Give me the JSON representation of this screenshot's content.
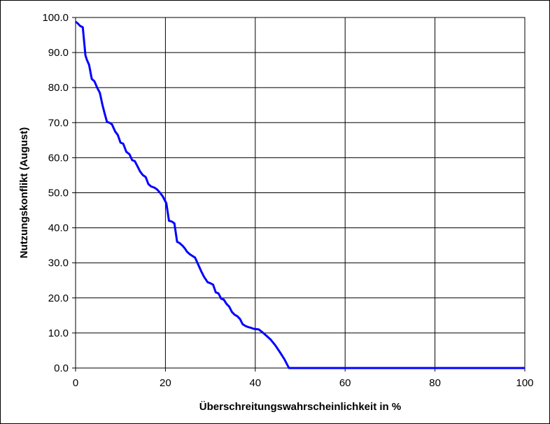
{
  "chart_data": {
    "type": "line",
    "title": "",
    "xlabel": "Überschreitungswahrscheinlichkeit in %",
    "ylabel": "Nutzungskonflikt (August)",
    "xlim": [
      0,
      100
    ],
    "ylim": [
      0,
      100
    ],
    "grid": true,
    "legend": "none",
    "x_ticks": [
      "0",
      "20",
      "40",
      "60",
      "80",
      "100"
    ],
    "y_ticks": [
      "0.0",
      "10.0",
      "20.0",
      "30.0",
      "40.0",
      "50.0",
      "60.0",
      "70.0",
      "80.0",
      "90.0",
      "100.0"
    ],
    "series": [
      {
        "color": "#0000ff",
        "x": [
          0,
          0.5,
          1,
          1.6,
          2.2,
          2.5,
          3,
          3.6,
          4.2,
          4.8,
          5.4,
          6,
          6.5,
          7,
          7.5,
          8.1,
          8.8,
          9.4,
          10,
          10.6,
          11.3,
          12,
          12.6,
          13.2,
          13.8,
          14.4,
          15,
          15.6,
          16.2,
          16.8,
          17.5,
          18.1,
          18.8,
          19.4,
          20.2,
          20.8,
          21.4,
          22,
          22.6,
          23.2,
          23.9,
          24.4,
          24.8,
          25.4,
          26,
          26.6,
          27.3,
          28,
          28.6,
          29.4,
          30,
          30.6,
          31.2,
          31.8,
          32.4,
          33,
          33.6,
          34.2,
          34.8,
          35.4,
          36,
          36.6,
          37.2,
          37.8,
          38.4,
          39,
          39.6,
          40.2,
          40.8,
          41.5,
          42.5,
          43.5,
          44.5,
          45.5,
          46.5,
          47.5,
          48.3,
          49,
          49.6,
          50.2,
          51,
          52,
          60,
          80,
          100
        ],
        "y": [
          98.8,
          98.3,
          97.6,
          97.2,
          89.2,
          88,
          86.5,
          82.5,
          81.8,
          80,
          78.5,
          75,
          72.5,
          70.2,
          70,
          69.5,
          67.5,
          66.5,
          64.3,
          64,
          61.7,
          61,
          59.3,
          59,
          57.5,
          56,
          55,
          54.5,
          52.5,
          51.8,
          51.5,
          51,
          50,
          49,
          47,
          42,
          41.8,
          41.3,
          36,
          35.6,
          34.8,
          34,
          33.2,
          32.5,
          32,
          31.5,
          29.5,
          27.5,
          26,
          24.5,
          24.2,
          23.8,
          21.6,
          21.3,
          19.8,
          19.5,
          18.3,
          17.5,
          16,
          15.2,
          14.8,
          14,
          12.5,
          12,
          11.7,
          11.5,
          11.2,
          11.1,
          11,
          10.3,
          9.2,
          8,
          6.4,
          4.5,
          2.5,
          0,
          0,
          0,
          0,
          0,
          0,
          0,
          0,
          0,
          0
        ]
      }
    ]
  }
}
